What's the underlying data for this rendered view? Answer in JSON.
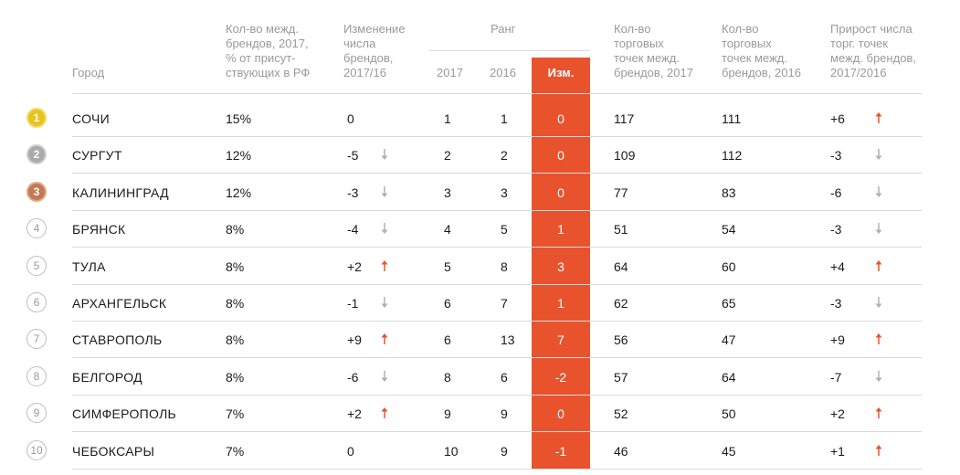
{
  "headers": {
    "city": "Город",
    "share": "Кол-во межд.\nбрендов, 2017,\n% от присут-\nствующих в РФ",
    "brand_change": "Изменение\nчисла\nбрендов,\n2017/16",
    "rank": "Ранг",
    "rank_2017": "2017",
    "rank_2016": "2016",
    "rank_change": "Изм.",
    "points_2017": "Кол-во\nторговых\nточек межд.\nбрендов, 2017",
    "points_2016": "Кол-во\nторговых\nточек межд.\nбрендов, 2016",
    "points_growth": "Прирост числа\nторг. точек\nмежд. брендов,\n2017/2016"
  },
  "colors": {
    "accent": "#e8532e",
    "header_text": "#9a9a9a",
    "arrow_up": "#e8532e",
    "arrow_down": "#b0b0b0",
    "gold": "#e8c21e",
    "silver": "#aaaaaa",
    "bronze": "#c07a55"
  },
  "rows": [
    {
      "pos": "1",
      "badge": "gold",
      "city": "СОЧИ",
      "share": "15%",
      "brand_change": "0",
      "brand_arrow": "none",
      "rank_2017": "1",
      "rank_2016": "1",
      "rank_change": "0",
      "points_2017": "117",
      "points_2016": "111",
      "points_growth": "+6",
      "points_arrow": "up"
    },
    {
      "pos": "2",
      "badge": "silver",
      "city": "СУРГУТ",
      "share": "12%",
      "brand_change": "-5",
      "brand_arrow": "down",
      "rank_2017": "2",
      "rank_2016": "2",
      "rank_change": "0",
      "points_2017": "109",
      "points_2016": "112",
      "points_growth": "-3",
      "points_arrow": "down"
    },
    {
      "pos": "3",
      "badge": "bronze",
      "city": "КАЛИНИНГРАД",
      "share": "12%",
      "brand_change": "-3",
      "brand_arrow": "down",
      "rank_2017": "3",
      "rank_2016": "3",
      "rank_change": "0",
      "points_2017": "77",
      "points_2016": "83",
      "points_growth": "-6",
      "points_arrow": "down"
    },
    {
      "pos": "4",
      "badge": "plain",
      "city": "БРЯНСК",
      "share": "8%",
      "brand_change": "-4",
      "brand_arrow": "down",
      "rank_2017": "4",
      "rank_2016": "5",
      "rank_change": "1",
      "points_2017": "51",
      "points_2016": "54",
      "points_growth": "-3",
      "points_arrow": "down"
    },
    {
      "pos": "5",
      "badge": "plain",
      "city": "ТУЛА",
      "share": "8%",
      "brand_change": "+2",
      "brand_arrow": "up",
      "rank_2017": "5",
      "rank_2016": "8",
      "rank_change": "3",
      "points_2017": "64",
      "points_2016": "60",
      "points_growth": "+4",
      "points_arrow": "up"
    },
    {
      "pos": "6",
      "badge": "plain",
      "city": "АРХАНГЕЛЬСК",
      "share": "8%",
      "brand_change": "-1",
      "brand_arrow": "down",
      "rank_2017": "6",
      "rank_2016": "7",
      "rank_change": "1",
      "points_2017": "62",
      "points_2016": "65",
      "points_growth": "-3",
      "points_arrow": "down"
    },
    {
      "pos": "7",
      "badge": "plain",
      "city": "СТАВРОПОЛЬ",
      "share": "8%",
      "brand_change": "+9",
      "brand_arrow": "up",
      "rank_2017": "6",
      "rank_2016": "13",
      "rank_change": "7",
      "points_2017": "56",
      "points_2016": "47",
      "points_growth": "+9",
      "points_arrow": "up"
    },
    {
      "pos": "8",
      "badge": "plain",
      "city": "БЕЛГОРОД",
      "share": "8%",
      "brand_change": "-6",
      "brand_arrow": "down",
      "rank_2017": "8",
      "rank_2016": "6",
      "rank_change": "-2",
      "points_2017": "57",
      "points_2016": "64",
      "points_growth": "-7",
      "points_arrow": "down"
    },
    {
      "pos": "9",
      "badge": "plain",
      "city": "СИМФЕРОПОЛЬ",
      "share": "7%",
      "brand_change": "+2",
      "brand_arrow": "up",
      "rank_2017": "9",
      "rank_2016": "9",
      "rank_change": "0",
      "points_2017": "52",
      "points_2016": "50",
      "points_growth": "+2",
      "points_arrow": "up"
    },
    {
      "pos": "10",
      "badge": "plain",
      "city": "ЧЕБОКСАРЫ",
      "share": "7%",
      "brand_change": "0",
      "brand_arrow": "none",
      "rank_2017": "10",
      "rank_2016": "9",
      "rank_change": "-1",
      "points_2017": "46",
      "points_2016": "45",
      "points_growth": "+1",
      "points_arrow": "up"
    }
  ]
}
